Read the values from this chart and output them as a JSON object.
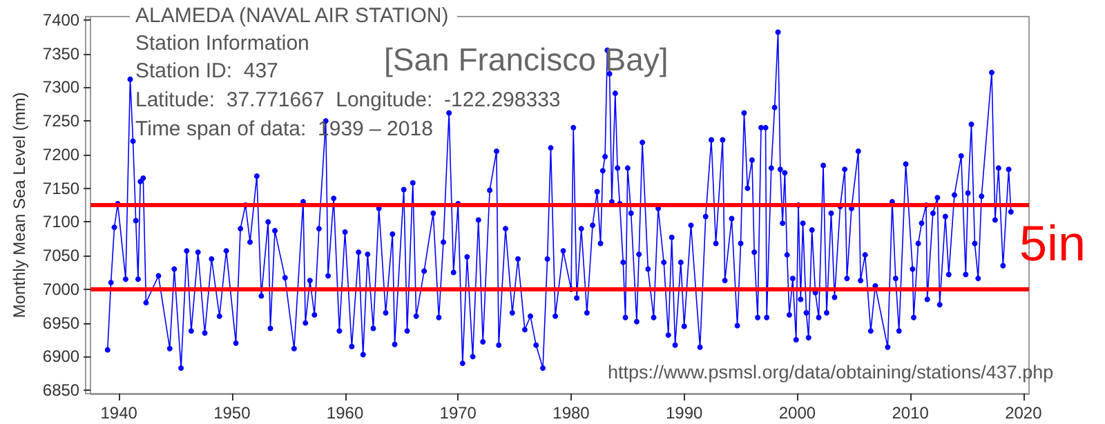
{
  "chart_data": {
    "type": "line",
    "title": "ALAMEDA (NAVAL AIR STATION)",
    "ylabel": "Monthly Mean Sea Level (mm)",
    "annotations": [
      "Station Information",
      "Station ID:  437",
      "Latitude:  37.771667  Longitude:  -122.298333",
      "Time span of data:  1939 – 2018",
      "[San Francisco Bay]",
      "https://www.psmsl.org/data/obtaining/stations/437.php",
      "5in"
    ],
    "x": [
      1939.0,
      1939.3,
      1939.6,
      1939.9,
      1940.6,
      1941.0,
      1941.25,
      1941.5,
      1941.7,
      1941.9,
      1942.15,
      1942.4,
      1943.5,
      1944.5,
      1944.9,
      1945.5,
      1946.0,
      1946.4,
      1947.0,
      1947.6,
      1948.2,
      1948.9,
      1949.5,
      1950.35,
      1950.75,
      1951.2,
      1951.6,
      1952.2,
      1952.6,
      1953.2,
      1953.4,
      1953.8,
      1954.7,
      1955.5,
      1956.3,
      1956.5,
      1956.9,
      1957.3,
      1957.7,
      1958.3,
      1958.5,
      1959.0,
      1959.5,
      1960.0,
      1960.6,
      1961.2,
      1961.6,
      1962.0,
      1962.5,
      1963.0,
      1963.6,
      1964.2,
      1964.4,
      1965.2,
      1965.5,
      1966.0,
      1966.3,
      1967.0,
      1967.8,
      1968.3,
      1968.7,
      1969.2,
      1969.6,
      1970.0,
      1970.4,
      1970.8,
      1971.3,
      1971.8,
      1972.2,
      1972.8,
      1973.4,
      1973.6,
      1974.2,
      1974.8,
      1975.3,
      1975.9,
      1976.4,
      1976.9,
      1977.5,
      1977.9,
      1978.2,
      1978.6,
      1979.3,
      1980.0,
      1980.2,
      1980.5,
      1980.9,
      1981.4,
      1981.9,
      1982.3,
      1982.6,
      1982.8,
      1983.0,
      1983.2,
      1983.4,
      1983.6,
      1983.9,
      1984.1,
      1984.3,
      1984.6,
      1984.8,
      1985.0,
      1985.3,
      1985.8,
      1986.0,
      1986.3,
      1986.8,
      1987.3,
      1987.7,
      1988.2,
      1988.6,
      1988.9,
      1989.2,
      1989.7,
      1990.0,
      1990.6,
      1991.4,
      1991.9,
      1992.4,
      1992.8,
      1993.4,
      1993.6,
      1994.2,
      1994.7,
      1995.0,
      1995.3,
      1995.6,
      1996.0,
      1996.2,
      1996.5,
      1996.8,
      1997.2,
      1997.3,
      1997.7,
      1998.0,
      1998.3,
      1998.5,
      1998.7,
      1998.9,
      1999.1,
      1999.3,
      1999.6,
      1999.9,
      2000.1,
      2000.3,
      2000.5,
      2000.8,
      2001.0,
      2001.3,
      2001.6,
      2001.9,
      2002.3,
      2002.6,
      2003.0,
      2003.3,
      2003.8,
      2004.2,
      2004.4,
      2004.8,
      2005.4,
      2005.6,
      2006.0,
      2006.5,
      2006.9,
      2008.0,
      2008.4,
      2008.7,
      2009.0,
      2009.6,
      2010.2,
      2010.3,
      2010.7,
      2011.0,
      2011.4,
      2011.5,
      2012.0,
      2012.4,
      2012.6,
      2013.1,
      2013.4,
      2013.9,
      2014.5,
      2014.9,
      2015.1,
      2015.4,
      2015.7,
      2016.0,
      2016.3,
      2017.2,
      2017.5,
      2017.8,
      2018.2,
      2018.7,
      2018.9
    ],
    "series": [
      {
        "color": "#0000ff",
        "values": [
          6910,
          7010,
          7092,
          7127,
          7015,
          7312,
          7220,
          7102,
          7015,
          7160,
          7165,
          6980,
          7020,
          6912,
          7030,
          6883,
          7057,
          6938,
          7055,
          6935,
          7045,
          6960,
          7057,
          6920,
          7090,
          7125,
          7070,
          7168,
          6990,
          7100,
          6942,
          7087,
          7017,
          6912,
          7130,
          6950,
          7013,
          6962,
          7090,
          7250,
          7020,
          7135,
          6938,
          7085,
          6915,
          7055,
          6903,
          7052,
          6942,
          7120,
          6965,
          7082,
          6918,
          7148,
          6938,
          7158,
          6960,
          7027,
          7113,
          6958,
          7070,
          7262,
          7025,
          7127,
          6890,
          7048,
          6900,
          7103,
          6922,
          7147,
          7205,
          6917,
          7090,
          6965,
          7045,
          6940,
          6960,
          6917,
          6883,
          7045,
          7210,
          6960,
          7057,
          7000,
          7240,
          6987,
          7090,
          6965,
          7095,
          7145,
          7068,
          7176,
          7197,
          7355,
          7320,
          7130,
          7291,
          7180,
          7127,
          7040,
          6958,
          7180,
          7113,
          6952,
          7052,
          7218,
          7030,
          6958,
          7120,
          7040,
          6932,
          7077,
          6917,
          7040,
          6945,
          7095,
          6914,
          7108,
          7222,
          7068,
          7222,
          7013,
          7105,
          6946,
          7068,
          7262,
          7150,
          7192,
          7055,
          6958,
          7240,
          7240,
          6958,
          7180,
          7270,
          7382,
          7178,
          7098,
          7173,
          7051,
          6962,
          7016,
          6925,
          7125,
          6985,
          7098,
          6965,
          6928,
          7088,
          6995,
          6958,
          7184,
          6965,
          7113,
          6988,
          7123,
          7178,
          7016,
          7120,
          7205,
          7013,
          7051,
          6938,
          7005,
          6914,
          7130,
          7016,
          6938,
          7186,
          7030,
          6958,
          7068,
          7098,
          7125,
          6985,
          7113,
          7136,
          6977,
          7108,
          7022,
          7140,
          7198,
          7022,
          7143,
          7245,
          7068,
          7016,
          7138,
          7322,
          7103,
          7180,
          7035,
          7178,
          7115
        ]
      }
    ],
    "xlim": [
      1937.5,
      2020.5
    ],
    "xticks": [
      1940,
      1950,
      1960,
      1970,
      1980,
      1990,
      2000,
      2010,
      2020
    ],
    "ylim": [
      6845,
      7405
    ],
    "yticks": [
      6850,
      6900,
      6950,
      7000,
      7050,
      7100,
      7150,
      7200,
      7250,
      7300,
      7350,
      7400
    ],
    "ref_lines": [
      {
        "axis": "y",
        "value": 7125,
        "color": "#ff0000",
        "line_style": "solid"
      },
      {
        "axis": "y",
        "value": 7000,
        "color": "#ff0000",
        "line_style": "solid"
      }
    ],
    "marker": "circle",
    "line_style": "solid",
    "grid": false
  }
}
